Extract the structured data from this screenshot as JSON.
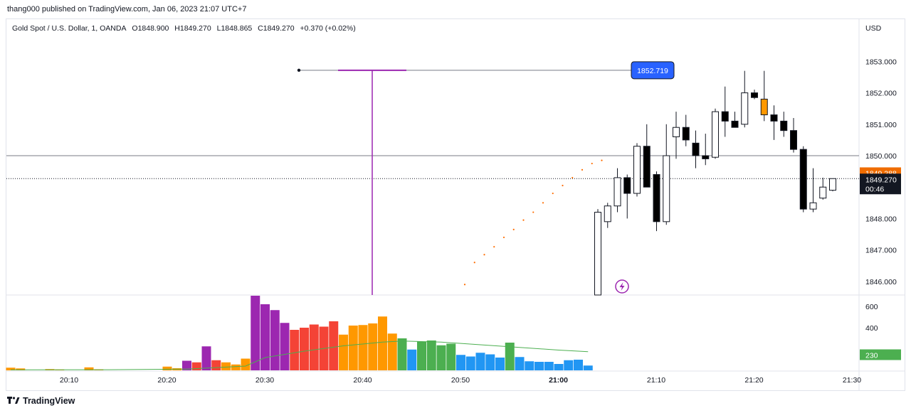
{
  "header": {
    "published": "thang000 published on TradingView.com, Jan 06, 2023 21:07 UTC+7"
  },
  "legend": {
    "symbol": "Gold Spot / U.S. Dollar, 1, OANDA",
    "open": "O1848.900",
    "high": "H1849.270",
    "low": "L1848.865",
    "close": "C1849.270",
    "change": "+0.370 (+0.02%)"
  },
  "price_axis": {
    "unit": "USD",
    "ticks": [
      "1853.000",
      "1852.000",
      "1851.000",
      "1850.000",
      "1848.000",
      "1847.000",
      "1846.000"
    ]
  },
  "volume_axis": {
    "ticks": [
      "600",
      "400"
    ]
  },
  "time_axis": {
    "ticks": [
      {
        "label": "20:10",
        "bold": false
      },
      {
        "label": "20:20",
        "bold": false
      },
      {
        "label": "20:30",
        "bold": false
      },
      {
        "label": "20:40",
        "bold": false
      },
      {
        "label": "20:50",
        "bold": false
      },
      {
        "label": "21:00",
        "bold": true
      },
      {
        "label": "21:10",
        "bold": false
      },
      {
        "label": "21:20",
        "bold": false
      },
      {
        "label": "21:30",
        "bold": false
      }
    ]
  },
  "badges": {
    "level_label": "1852.719",
    "secondary_price": "1849.288",
    "last_price": "1849.270",
    "countdown": "00:46",
    "volume_value": "230"
  },
  "colors": {
    "level_badge": "#2962ff",
    "secondary_badge": "#ef6c00",
    "last_badge": "#131722",
    "volume_badge": "#4caf50",
    "vertical_marker": "#9c27b0",
    "dots": "#ff6d00",
    "vol_orange": "#ff9800",
    "vol_purple": "#9c27b0",
    "vol_red": "#f44336",
    "vol_green": "#4caf50",
    "vol_blue": "#2196f3"
  },
  "footer": {
    "brand": "TradingView"
  },
  "chart_data": {
    "type": "candlestick",
    "price_range": [
      1845.6,
      1853.75
    ],
    "level_price": 1852.719,
    "horizontal_line_price": 1850.0,
    "last_price": 1849.27,
    "candles": [
      {
        "i": 60,
        "o": 1845.5,
        "h": 1848.3,
        "l": 1845.4,
        "c": 1848.2,
        "bull": true
      },
      {
        "i": 61,
        "o": 1847.9,
        "h": 1848.5,
        "l": 1847.7,
        "c": 1848.4,
        "bull": true
      },
      {
        "i": 62,
        "o": 1848.4,
        "h": 1849.6,
        "l": 1848.2,
        "c": 1849.3,
        "bull": true
      },
      {
        "i": 63,
        "o": 1849.3,
        "h": 1849.4,
        "l": 1848.0,
        "c": 1848.8,
        "bull": false
      },
      {
        "i": 64,
        "o": 1848.8,
        "h": 1850.4,
        "l": 1848.7,
        "c": 1850.3,
        "bull": true
      },
      {
        "i": 65,
        "o": 1850.3,
        "h": 1851.0,
        "l": 1849.0,
        "c": 1849.0,
        "bull": false
      },
      {
        "i": 66,
        "o": 1849.4,
        "h": 1849.5,
        "l": 1847.6,
        "c": 1847.9,
        "bull": false
      },
      {
        "i": 67,
        "o": 1847.9,
        "h": 1851.0,
        "l": 1847.8,
        "c": 1850.0,
        "bull": true
      },
      {
        "i": 68,
        "o": 1850.6,
        "h": 1851.4,
        "l": 1849.9,
        "c": 1850.9,
        "bull": true
      },
      {
        "i": 69,
        "o": 1850.9,
        "h": 1851.3,
        "l": 1850.3,
        "c": 1850.5,
        "bull": false
      },
      {
        "i": 70,
        "o": 1850.4,
        "h": 1850.8,
        "l": 1849.6,
        "c": 1850.0,
        "bull": false
      },
      {
        "i": 71,
        "o": 1850.0,
        "h": 1850.7,
        "l": 1849.7,
        "c": 1849.9,
        "bull": false
      },
      {
        "i": 72,
        "o": 1849.95,
        "h": 1851.5,
        "l": 1849.9,
        "c": 1851.4,
        "bull": true
      },
      {
        "i": 73,
        "o": 1851.4,
        "h": 1852.2,
        "l": 1850.6,
        "c": 1851.1,
        "bull": false
      },
      {
        "i": 74,
        "o": 1851.1,
        "h": 1851.4,
        "l": 1850.9,
        "c": 1850.9,
        "bull": false
      },
      {
        "i": 75,
        "o": 1851.0,
        "h": 1852.7,
        "l": 1850.9,
        "c": 1852.0,
        "bull": true
      },
      {
        "i": 76,
        "o": 1852.0,
        "h": 1852.1,
        "l": 1851.8,
        "c": 1851.85,
        "bull": false
      },
      {
        "i": 77,
        "o": 1851.8,
        "h": 1852.7,
        "l": 1851.1,
        "c": 1851.3,
        "bull": false,
        "highlight": true
      },
      {
        "i": 78,
        "o": 1851.3,
        "h": 1851.6,
        "l": 1850.5,
        "c": 1851.1,
        "bull": false
      },
      {
        "i": 79,
        "o": 1851.1,
        "h": 1851.4,
        "l": 1850.6,
        "c": 1850.8,
        "bull": false
      },
      {
        "i": 80,
        "o": 1850.8,
        "h": 1851.2,
        "l": 1850.1,
        "c": 1850.2,
        "bull": false
      },
      {
        "i": 81,
        "o": 1850.2,
        "h": 1850.3,
        "l": 1848.2,
        "c": 1848.3,
        "bull": false
      },
      {
        "i": 82,
        "o": 1848.3,
        "h": 1849.6,
        "l": 1848.2,
        "c": 1848.5,
        "bull": true
      },
      {
        "i": 83,
        "o": 1848.65,
        "h": 1849.3,
        "l": 1848.6,
        "c": 1849.0,
        "bull": true
      },
      {
        "i": 84,
        "o": 1848.9,
        "h": 1849.27,
        "l": 1848.865,
        "c": 1849.27,
        "bull": true
      }
    ],
    "projection_dots": [
      1845.9,
      1846.6,
      1846.85,
      1847.1,
      1847.4,
      1847.65,
      1847.95,
      1848.2,
      1848.5,
      1848.8,
      1849.05,
      1849.3,
      1849.55,
      1849.75,
      1849.85
    ],
    "volume_range": [
      0,
      700
    ],
    "volume": [
      {
        "i": 0,
        "v": 25,
        "c": "orange"
      },
      {
        "i": 1,
        "v": 18,
        "c": "orange"
      },
      {
        "i": 4,
        "v": 12,
        "c": "orange"
      },
      {
        "i": 5,
        "v": 8,
        "c": "orange"
      },
      {
        "i": 8,
        "v": 28,
        "c": "orange"
      },
      {
        "i": 9,
        "v": 10,
        "c": "orange"
      },
      {
        "i": 16,
        "v": 35,
        "c": "orange"
      },
      {
        "i": 17,
        "v": 20,
        "c": "orange"
      },
      {
        "i": 18,
        "v": 90,
        "c": "purple"
      },
      {
        "i": 19,
        "v": 75,
        "c": "red"
      },
      {
        "i": 20,
        "v": 225,
        "c": "purple"
      },
      {
        "i": 21,
        "v": 95,
        "c": "red"
      },
      {
        "i": 22,
        "v": 75,
        "c": "orange"
      },
      {
        "i": 23,
        "v": 55,
        "c": "orange"
      },
      {
        "i": 24,
        "v": 110,
        "c": "orange"
      },
      {
        "i": 25,
        "v": 700,
        "c": "purple"
      },
      {
        "i": 26,
        "v": 620,
        "c": "purple"
      },
      {
        "i": 27,
        "v": 565,
        "c": "purple"
      },
      {
        "i": 28,
        "v": 445,
        "c": "purple"
      },
      {
        "i": 29,
        "v": 380,
        "c": "red"
      },
      {
        "i": 30,
        "v": 400,
        "c": "red"
      },
      {
        "i": 31,
        "v": 430,
        "c": "red"
      },
      {
        "i": 32,
        "v": 410,
        "c": "red"
      },
      {
        "i": 33,
        "v": 460,
        "c": "red"
      },
      {
        "i": 34,
        "v": 335,
        "c": "orange"
      },
      {
        "i": 35,
        "v": 420,
        "c": "orange"
      },
      {
        "i": 36,
        "v": 425,
        "c": "orange"
      },
      {
        "i": 37,
        "v": 440,
        "c": "orange"
      },
      {
        "i": 38,
        "v": 505,
        "c": "orange"
      },
      {
        "i": 39,
        "v": 345,
        "c": "orange"
      },
      {
        "i": 40,
        "v": 300,
        "c": "green"
      },
      {
        "i": 41,
        "v": 195,
        "c": "blue"
      },
      {
        "i": 42,
        "v": 270,
        "c": "green"
      },
      {
        "i": 43,
        "v": 280,
        "c": "green"
      },
      {
        "i": 44,
        "v": 235,
        "c": "green"
      },
      {
        "i": 45,
        "v": 250,
        "c": "green"
      },
      {
        "i": 46,
        "v": 145,
        "c": "blue"
      },
      {
        "i": 47,
        "v": 130,
        "c": "blue"
      },
      {
        "i": 48,
        "v": 165,
        "c": "blue"
      },
      {
        "i": 49,
        "v": 150,
        "c": "blue"
      },
      {
        "i": 50,
        "v": 120,
        "c": "blue"
      },
      {
        "i": 51,
        "v": 260,
        "c": "green"
      },
      {
        "i": 52,
        "v": 125,
        "c": "blue"
      },
      {
        "i": 53,
        "v": 85,
        "c": "blue"
      },
      {
        "i": 54,
        "v": 80,
        "c": "blue"
      },
      {
        "i": 55,
        "v": 80,
        "c": "blue"
      },
      {
        "i": 56,
        "v": 60,
        "c": "blue"
      },
      {
        "i": 57,
        "v": 95,
        "c": "blue"
      },
      {
        "i": 58,
        "v": 100,
        "c": "blue"
      },
      {
        "i": 59,
        "v": 45,
        "c": "blue"
      }
    ],
    "volume_ma": [
      {
        "i": 0,
        "v": 5
      },
      {
        "i": 10,
        "v": 6
      },
      {
        "i": 18,
        "v": 12
      },
      {
        "i": 24,
        "v": 40
      },
      {
        "i": 26,
        "v": 120
      },
      {
        "i": 30,
        "v": 180
      },
      {
        "i": 34,
        "v": 230
      },
      {
        "i": 38,
        "v": 265
      },
      {
        "i": 40,
        "v": 275
      },
      {
        "i": 44,
        "v": 265
      },
      {
        "i": 48,
        "v": 240
      },
      {
        "i": 52,
        "v": 215
      },
      {
        "i": 56,
        "v": 190
      },
      {
        "i": 59,
        "v": 175
      }
    ]
  }
}
